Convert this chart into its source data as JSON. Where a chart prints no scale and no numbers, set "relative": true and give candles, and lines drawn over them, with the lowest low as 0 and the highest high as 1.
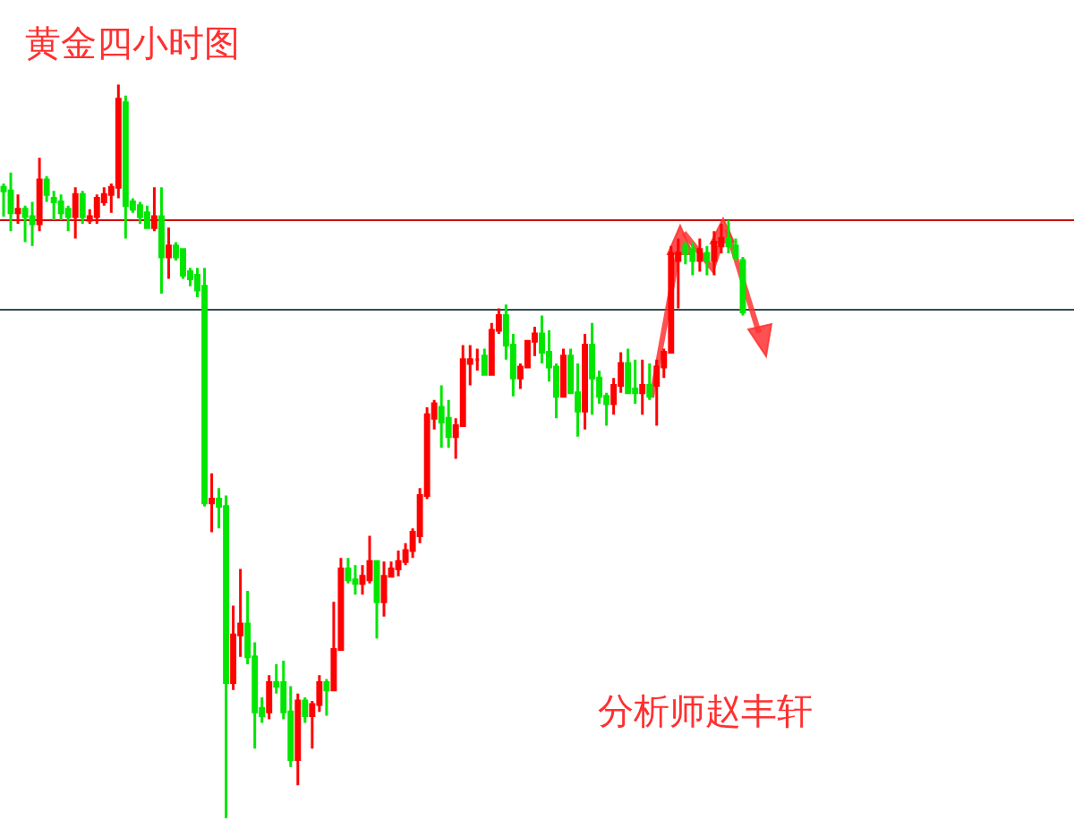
{
  "chart_data": {
    "type": "candlestick",
    "title": "黄金四小时图",
    "relative": true,
    "annotations": [
      "分析师赵丰轩"
    ],
    "categories": [
      null,
      null,
      null,
      null,
      null,
      null,
      null,
      null,
      null,
      null,
      null,
      null,
      null,
      null,
      null,
      null,
      null,
      null,
      null,
      null,
      null,
      null,
      null,
      null,
      null,
      null,
      null,
      null,
      null,
      null,
      null,
      null,
      null,
      null,
      null,
      null,
      null,
      null,
      null,
      null,
      null,
      null,
      null,
      null,
      null,
      null,
      null,
      null,
      null,
      null,
      null,
      null,
      null,
      null,
      null,
      null,
      null,
      null,
      null,
      null,
      null,
      null,
      null,
      null,
      null,
      null,
      null,
      null,
      null,
      null,
      null,
      null,
      null,
      null,
      null,
      null,
      null,
      null,
      null,
      null,
      null,
      null,
      null,
      null,
      null,
      null,
      null,
      null,
      null,
      null,
      null,
      null,
      null,
      null,
      null,
      null,
      null,
      null,
      null,
      null,
      null,
      null,
      null,
      null
    ],
    "ohlc": [
      [
        0.86,
        0.865,
        0.82,
        0.855
      ],
      [
        0.855,
        0.88,
        0.8,
        0.825
      ],
      [
        0.825,
        0.85,
        0.81,
        0.83
      ],
      [
        0.83,
        0.835,
        0.785,
        0.82
      ],
      [
        0.82,
        0.84,
        0.78,
        0.81
      ],
      [
        0.81,
        0.9,
        0.8,
        0.87
      ],
      [
        0.87,
        0.875,
        0.84,
        0.85
      ],
      [
        0.845,
        0.855,
        0.815,
        0.84
      ],
      [
        0.84,
        0.85,
        0.815,
        0.825
      ],
      [
        0.83,
        0.835,
        0.8,
        0.82
      ],
      [
        0.82,
        0.86,
        0.79,
        0.85
      ],
      [
        0.85,
        0.855,
        0.81,
        0.82
      ],
      [
        0.815,
        0.83,
        0.81,
        0.82
      ],
      [
        0.82,
        0.85,
        0.81,
        0.845
      ],
      [
        0.84,
        0.86,
        0.835,
        0.85
      ],
      [
        0.85,
        0.865,
        0.825,
        0.86
      ],
      [
        0.86,
        1.0,
        0.845,
        0.98
      ],
      [
        0.975,
        0.985,
        0.79,
        0.835
      ],
      [
        0.84,
        0.845,
        0.825,
        0.83
      ],
      [
        0.835,
        0.84,
        0.81,
        0.82
      ],
      [
        0.825,
        0.835,
        0.805,
        0.805
      ],
      [
        0.805,
        0.86,
        0.8,
        0.82
      ],
      [
        0.82,
        0.86,
        0.715,
        0.765
      ],
      [
        0.765,
        0.805,
        0.735,
        0.78
      ],
      [
        0.78,
        0.785,
        0.76,
        0.765
      ],
      [
        0.775,
        0.775,
        0.735,
        0.74
      ],
      [
        0.745,
        0.75,
        0.725,
        0.735
      ],
      [
        0.74,
        0.75,
        0.71,
        0.72
      ],
      [
        0.725,
        0.75,
        0.425,
        0.43
      ],
      [
        0.43,
        0.47,
        0.39,
        0.435
      ],
      [
        0.435,
        0.45,
        0.395,
        0.425
      ],
      [
        0.425,
        0.44,
        0.0,
        0.185
      ],
      [
        0.185,
        0.29,
        0.175,
        0.25
      ],
      [
        0.25,
        0.34,
        0.22,
        0.265
      ],
      [
        0.265,
        0.31,
        0.21,
        0.22
      ],
      [
        0.22,
        0.24,
        0.095,
        0.145
      ],
      [
        0.15,
        0.165,
        0.13,
        0.14
      ],
      [
        0.145,
        0.195,
        0.135,
        0.185
      ],
      [
        0.185,
        0.21,
        0.17,
        0.18
      ],
      [
        0.185,
        0.215,
        0.135,
        0.145
      ],
      [
        0.145,
        0.18,
        0.07,
        0.08
      ],
      [
        0.08,
        0.17,
        0.045,
        0.16
      ],
      [
        0.16,
        0.165,
        0.13,
        0.14
      ],
      [
        0.14,
        0.16,
        0.095,
        0.155
      ],
      [
        0.155,
        0.195,
        0.145,
        0.185
      ],
      [
        0.185,
        0.19,
        0.14,
        0.175
      ],
      [
        0.175,
        0.295,
        0.175,
        0.23
      ],
      [
        0.23,
        0.355,
        0.23,
        0.34
      ],
      [
        0.34,
        0.355,
        0.32,
        0.325
      ],
      [
        0.325,
        0.345,
        0.305,
        0.32
      ],
      [
        0.32,
        0.345,
        0.305,
        0.33
      ],
      [
        0.325,
        0.385,
        0.32,
        0.35
      ],
      [
        0.35,
        0.35,
        0.245,
        0.295
      ],
      [
        0.295,
        0.35,
        0.275,
        0.33
      ],
      [
        0.33,
        0.35,
        0.33,
        0.34
      ],
      [
        0.34,
        0.365,
        0.33,
        0.35
      ],
      [
        0.35,
        0.375,
        0.345,
        0.365
      ],
      [
        0.365,
        0.395,
        0.355,
        0.39
      ],
      [
        0.385,
        0.45,
        0.375,
        0.44
      ],
      [
        0.44,
        0.56,
        0.435,
        0.55
      ],
      [
        0.545,
        0.57,
        0.53,
        0.565
      ],
      [
        0.56,
        0.59,
        0.505,
        0.54
      ],
      [
        0.545,
        0.57,
        0.505,
        0.52
      ],
      [
        0.52,
        0.545,
        0.49,
        0.535
      ],
      [
        0.535,
        0.645,
        0.535,
        0.625
      ],
      [
        0.62,
        0.645,
        0.59,
        0.625
      ],
      [
        0.625,
        0.64,
        0.61,
        0.625
      ],
      [
        0.63,
        0.64,
        0.605,
        0.605
      ],
      [
        0.605,
        0.675,
        0.605,
        0.665
      ],
      [
        0.665,
        0.695,
        0.66,
        0.685
      ],
      [
        0.685,
        0.7,
        0.625,
        0.645
      ],
      [
        0.645,
        0.66,
        0.575,
        0.6
      ],
      [
        0.6,
        0.62,
        0.585,
        0.615
      ],
      [
        0.615,
        0.65,
        0.615,
        0.65
      ],
      [
        0.65,
        0.67,
        0.63,
        0.66
      ],
      [
        0.66,
        0.685,
        0.62,
        0.635
      ],
      [
        0.635,
        0.665,
        0.595,
        0.615
      ],
      [
        0.615,
        0.62,
        0.545,
        0.575
      ],
      [
        0.575,
        0.64,
        0.575,
        0.63
      ],
      [
        0.63,
        0.64,
        0.58,
        0.58
      ],
      [
        0.58,
        0.62,
        0.52,
        0.555
      ],
      [
        0.555,
        0.66,
        0.53,
        0.645
      ],
      [
        0.645,
        0.675,
        0.55,
        0.6
      ],
      [
        0.6,
        0.61,
        0.565,
        0.575
      ],
      [
        0.575,
        0.58,
        0.535,
        0.565
      ],
      [
        0.565,
        0.6,
        0.55,
        0.59
      ],
      [
        0.59,
        0.635,
        0.58,
        0.62
      ],
      [
        0.62,
        0.64,
        0.58,
        0.58
      ],
      [
        0.585,
        0.625,
        0.565,
        0.58
      ],
      [
        0.58,
        0.625,
        0.55,
        0.59
      ],
      [
        0.59,
        0.62,
        0.57,
        0.575
      ],
      [
        0.59,
        0.625,
        0.535,
        0.615
      ],
      [
        0.615,
        0.64,
        0.6,
        0.635
      ],
      [
        0.635,
        0.78,
        0.635,
        0.77
      ],
      [
        0.76,
        0.79,
        0.695,
        0.77
      ],
      [
        0.78,
        0.785,
        0.755,
        0.77
      ],
      [
        0.775,
        0.785,
        0.74,
        0.76
      ],
      [
        0.76,
        0.79,
        0.745,
        0.775
      ],
      [
        0.77,
        0.78,
        0.74,
        0.76
      ],
      [
        0.76,
        0.8,
        0.74,
        0.785
      ],
      [
        0.78,
        0.81,
        0.77,
        0.79
      ],
      [
        0.79,
        0.815,
        0.77,
        0.78
      ],
      [
        0.78,
        0.79,
        0.76,
        0.765
      ],
      [
        0.76,
        0.765,
        0.685,
        0.69
      ]
    ],
    "colors": [
      "#00e600",
      "#00e600",
      "#ff0000",
      "#00e600",
      "#00e600",
      "#ff0000",
      "#00e600",
      "#00e600",
      "#00e600",
      "#00e600",
      "#ff0000",
      "#00e600",
      "#ff0000",
      "#ff0000",
      "#ff0000",
      "#ff0000",
      "#ff0000",
      "#00e600",
      "#00e600",
      "#00e600",
      "#00e600",
      "#ff0000",
      "#00e600",
      "#ff0000",
      "#00e600",
      "#00e600",
      "#00e600",
      "#00e600",
      "#00e600",
      "#ff0000",
      "#00e600",
      "#00e600",
      "#ff0000",
      "#ff0000",
      "#00e600",
      "#00e600",
      "#00e600",
      "#ff0000",
      "#00e600",
      "#00e600",
      "#00e600",
      "#ff0000",
      "#00e600",
      "#ff0000",
      "#ff0000",
      "#00e600",
      "#ff0000",
      "#ff0000",
      "#00e600",
      "#00e600",
      "#ff0000",
      "#ff0000",
      "#00e600",
      "#ff0000",
      "#ff0000",
      "#ff0000",
      "#ff0000",
      "#ff0000",
      "#ff0000",
      "#ff0000",
      "#ff0000",
      "#00e600",
      "#00e600",
      "#ff0000",
      "#ff0000",
      "#ff0000",
      "#ff0000",
      "#00e600",
      "#ff0000",
      "#ff0000",
      "#00e600",
      "#00e600",
      "#ff0000",
      "#ff0000",
      "#ff0000",
      "#00e600",
      "#00e600",
      "#00e600",
      "#ff0000",
      "#00e600",
      "#00e600",
      "#ff0000",
      "#00e600",
      "#00e600",
      "#00e600",
      "#ff0000",
      "#ff0000",
      "#00e600",
      "#00e600",
      "#ff0000",
      "#00e600",
      "#ff0000",
      "#ff0000",
      "#ff0000",
      "#ff0000",
      "#00e600",
      "#00e600",
      "#ff0000",
      "#00e600",
      "#ff0000",
      "#ff0000",
      "#00e600",
      "#00e600",
      "#00e600"
    ],
    "ref_lines": [
      {
        "axis": "y",
        "value": 0.815,
        "color": "#cc0000"
      },
      {
        "axis": "y",
        "value": 0.693,
        "color": "#2f4f4f"
      }
    ]
  }
}
